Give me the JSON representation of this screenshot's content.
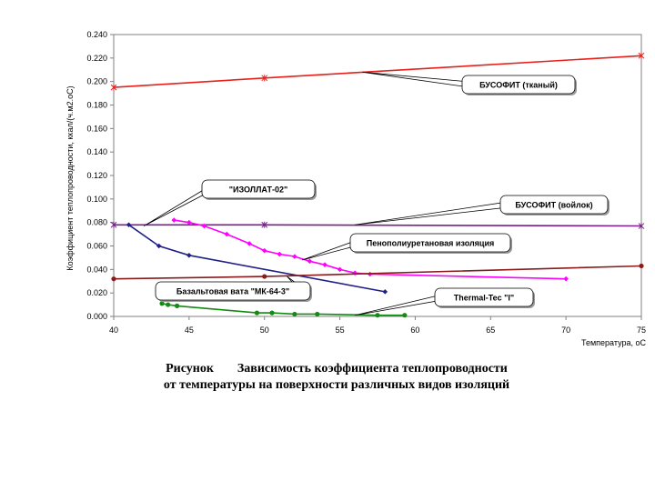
{
  "chart_data": {
    "type": "line",
    "xlabel": "Температура, оС",
    "ylabel": "Коэффициент теплопроводности, ккал/(ч.м2.оС)",
    "xlim": [
      40,
      75
    ],
    "ylim": [
      0.0,
      0.24
    ],
    "x_ticks": [
      "40",
      "45",
      "50",
      "55",
      "60",
      "65",
      "70",
      "75"
    ],
    "y_ticks": [
      "0.000",
      "0.020",
      "0.040",
      "0.060",
      "0.080",
      "0.100",
      "0.120",
      "0.140",
      "0.160",
      "0.180",
      "0.200",
      "0.220",
      "0.240"
    ],
    "grid": false,
    "legend": "callouts",
    "series": [
      {
        "name": "БУСОФИТ (тканый)",
        "color": "#e8201b",
        "marker": "star",
        "points": [
          [
            40,
            0.195
          ],
          [
            50,
            0.203
          ],
          [
            75,
            0.222
          ]
        ]
      },
      {
        "name": "БУСОФИТ (войлок)",
        "color": "#7a1f8a",
        "marker": "star",
        "points": [
          [
            40,
            0.078
          ],
          [
            50,
            0.078
          ],
          [
            75,
            0.077
          ]
        ]
      },
      {
        "name": "\"ИЗОЛЛАТ-02\"",
        "color": "#20208a",
        "marker": "diamond",
        "points": [
          [
            41,
            0.078
          ],
          [
            43,
            0.06
          ],
          [
            45,
            0.052
          ],
          [
            58,
            0.021
          ]
        ]
      },
      {
        "name": "Пенополиуретановая изоляция",
        "color": "#ff00ff",
        "marker": "diamond",
        "points": [
          [
            44,
            0.082
          ],
          [
            45,
            0.08
          ],
          [
            46,
            0.077
          ],
          [
            47.5,
            0.07
          ],
          [
            49,
            0.062
          ],
          [
            50,
            0.056
          ],
          [
            51,
            0.053
          ],
          [
            52,
            0.051
          ],
          [
            53,
            0.047
          ],
          [
            54,
            0.044
          ],
          [
            55,
            0.04
          ],
          [
            56,
            0.037
          ],
          [
            57,
            0.036
          ],
          [
            70,
            0.032
          ]
        ]
      },
      {
        "name": "Базальтовая вата \"МК-64-3\"",
        "color": "#8b1a1a",
        "marker": "circle",
        "points": [
          [
            40,
            0.032
          ],
          [
            50,
            0.034
          ],
          [
            75,
            0.043
          ]
        ]
      },
      {
        "name": "Thermal-Tec \"I\"",
        "color": "#138a13",
        "marker": "circle",
        "points": [
          [
            43.2,
            0.011
          ],
          [
            43.6,
            0.01
          ],
          [
            44.2,
            0.009
          ],
          [
            49.5,
            0.003
          ],
          [
            50.5,
            0.003
          ],
          [
            52,
            0.002
          ],
          [
            53.5,
            0.002
          ],
          [
            57.5,
            0.001
          ],
          [
            59.3,
            0.001
          ]
        ]
      }
    ],
    "callouts": [
      {
        "text": "БУСОФИТ (тканый)",
        "series": 0
      },
      {
        "text": "\"ИЗОЛЛАТ-02\"",
        "series": 2
      },
      {
        "text": "БУСОФИТ (войлок)",
        "series": 1
      },
      {
        "text": "Пенополиуретановая изоляция",
        "series": 3
      },
      {
        "text": "Базальтовая вата \"МК-64-3\"",
        "series": 4
      },
      {
        "text": "Thermal-Tec \"I\"",
        "series": 5
      }
    ]
  },
  "caption": {
    "label": "Рисунок",
    "title_line1": "Зависимость коэффициента теплопроводности",
    "title_line2": "от температуры на поверхности различных видов изоляций"
  }
}
